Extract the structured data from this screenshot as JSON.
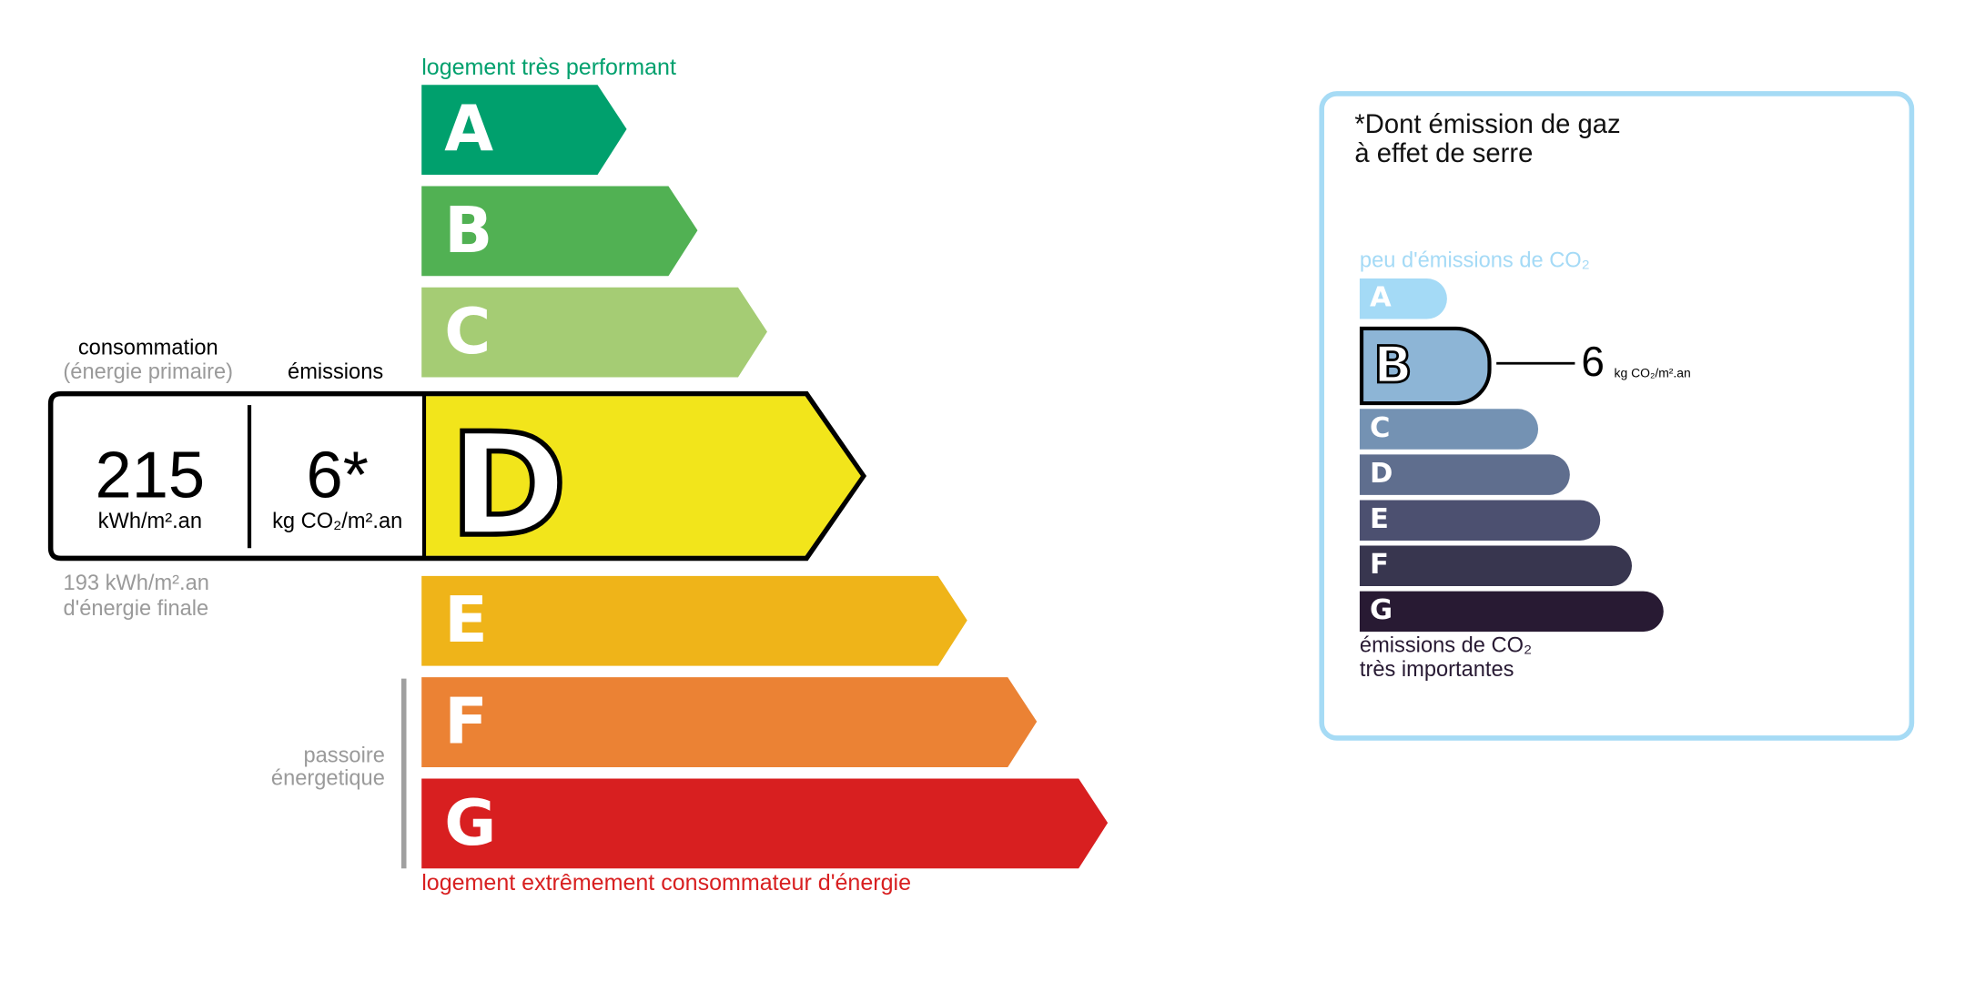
{
  "energy": {
    "top_label": "logement très performant",
    "bottom_label": "logement extrêmement consommateur d'énergie",
    "classes": [
      {
        "letter": "A",
        "color": "#00a06d"
      },
      {
        "letter": "B",
        "color": "#51b153"
      },
      {
        "letter": "C",
        "color": "#a5cc74"
      },
      {
        "letter": "D",
        "color": "#f2e51b"
      },
      {
        "letter": "E",
        "color": "#efb419"
      },
      {
        "letter": "F",
        "color": "#eb8234"
      },
      {
        "letter": "G",
        "color": "#d81f20"
      }
    ],
    "current_class": "D",
    "consumption_title": "consommation",
    "consumption_subtitle": "(énergie primaire)",
    "emissions_title": "émissions",
    "consumption_value": "215",
    "consumption_unit": "kWh/m².an",
    "emissions_value": "6*",
    "emissions_unit": "kg CO₂/m².an",
    "final_energy_value": "193 kWh/m².an",
    "final_energy_label": "d'énergie finale",
    "passoire_line1": "passoire",
    "passoire_line2": "énergetique"
  },
  "ges": {
    "title_line1": "*Dont émission de gaz",
    "title_line2": "à effet de serre",
    "top_label": "peu d'émissions de CO₂",
    "bottom_label_line1": "émissions de CO₂",
    "bottom_label_line2": "très importantes",
    "classes": [
      {
        "letter": "A",
        "color": "#a4daf6"
      },
      {
        "letter": "B",
        "color": "#8db5d6"
      },
      {
        "letter": "C",
        "color": "#7492b3"
      },
      {
        "letter": "D",
        "color": "#5f6e8e"
      },
      {
        "letter": "E",
        "color": "#4c5070"
      },
      {
        "letter": "F",
        "color": "#38364f"
      },
      {
        "letter": "G",
        "color": "#281a33"
      }
    ],
    "current_class": "B",
    "value": "6",
    "unit": "kg CO₂/m².an",
    "border_color": "#a6dbf5"
  }
}
